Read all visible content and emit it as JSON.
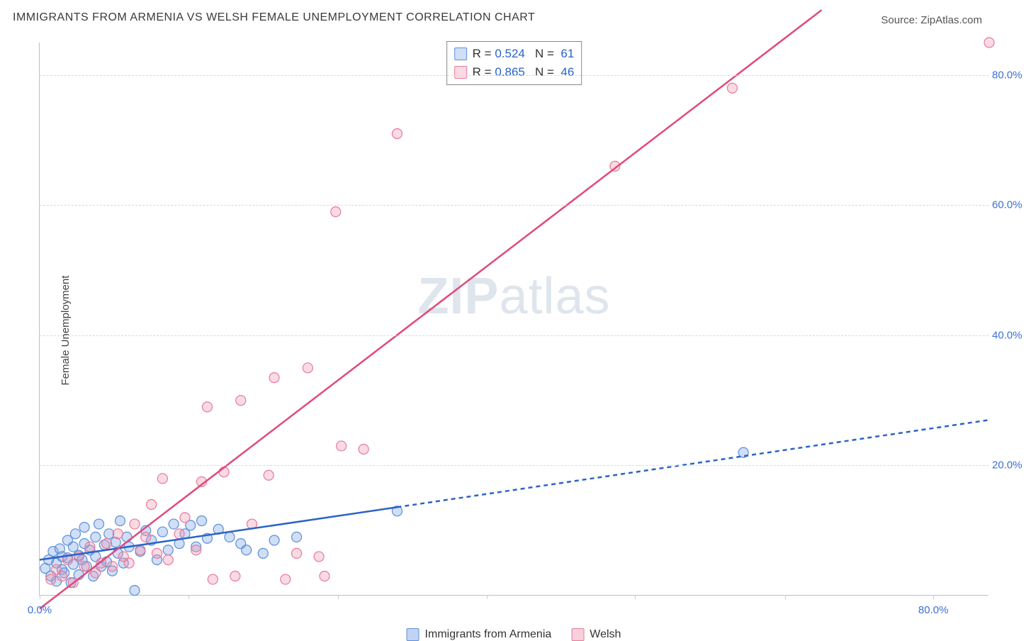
{
  "title": "IMMIGRANTS FROM ARMENIA VS WELSH FEMALE UNEMPLOYMENT CORRELATION CHART",
  "title_color": "#3a3a3a",
  "title_fontsize": 16,
  "source_label": "Source: ",
  "source_name": "ZipAtlas.com",
  "source_color": "#555555",
  "ylabel": "Female Unemployment",
  "watermark": "ZIPatlas",
  "background_color": "#ffffff",
  "grid_color": "#d8d8d8",
  "axis_color": "#bfbfbf",
  "xlim": [
    0,
    85
  ],
  "ylim": [
    0,
    85
  ],
  "yticks": [
    {
      "v": 20.0,
      "label": "20.0%"
    },
    {
      "v": 40.0,
      "label": "40.0%"
    },
    {
      "v": 60.0,
      "label": "60.0%"
    },
    {
      "v": 80.0,
      "label": "80.0%"
    }
  ],
  "xticks": [
    {
      "v": 0.0,
      "label": "0.0%"
    },
    {
      "v": 13.3,
      "label": ""
    },
    {
      "v": 26.7,
      "label": ""
    },
    {
      "v": 40.0,
      "label": ""
    },
    {
      "v": 53.3,
      "label": ""
    },
    {
      "v": 66.7,
      "label": ""
    },
    {
      "v": 80.0,
      "label": "80.0%"
    }
  ],
  "tick_label_color": "#3b6fd6",
  "tick_label_fontsize": 15,
  "series": [
    {
      "name": "Immigrants from Armenia",
      "fill": "rgba(120, 160, 230, 0.35)",
      "stroke": "#5b8fd9",
      "marker_radius": 7,
      "R": "0.524",
      "N": "61",
      "trend": {
        "x1": 0,
        "y1": 5.5,
        "x2": 85,
        "y2": 27,
        "color": "#2b63c8",
        "width": 2.5,
        "dash_after_x": 32,
        "dash_pattern": "6,5"
      },
      "points": [
        [
          0.5,
          4.2
        ],
        [
          0.8,
          5.5
        ],
        [
          1.0,
          3.0
        ],
        [
          1.2,
          6.8
        ],
        [
          1.5,
          2.2
        ],
        [
          1.5,
          5.0
        ],
        [
          1.8,
          7.2
        ],
        [
          2.0,
          4.0
        ],
        [
          2.0,
          6.0
        ],
        [
          2.2,
          3.5
        ],
        [
          2.5,
          8.5
        ],
        [
          2.5,
          5.8
        ],
        [
          2.8,
          2.0
        ],
        [
          3.0,
          7.5
        ],
        [
          3.0,
          4.8
        ],
        [
          3.2,
          9.5
        ],
        [
          3.5,
          6.2
        ],
        [
          3.5,
          3.2
        ],
        [
          3.8,
          5.5
        ],
        [
          4.0,
          8.0
        ],
        [
          4.0,
          10.5
        ],
        [
          4.2,
          4.5
        ],
        [
          4.5,
          7.0
        ],
        [
          4.8,
          3.0
        ],
        [
          5.0,
          9.0
        ],
        [
          5.0,
          6.0
        ],
        [
          5.3,
          11.0
        ],
        [
          5.5,
          4.5
        ],
        [
          5.8,
          7.8
        ],
        [
          6.0,
          5.2
        ],
        [
          6.2,
          9.5
        ],
        [
          6.5,
          3.8
        ],
        [
          6.8,
          8.2
        ],
        [
          7.0,
          6.5
        ],
        [
          7.2,
          11.5
        ],
        [
          7.5,
          5.0
        ],
        [
          7.8,
          9.0
        ],
        [
          8.0,
          7.5
        ],
        [
          8.5,
          0.8
        ],
        [
          9.0,
          6.8
        ],
        [
          9.5,
          10.0
        ],
        [
          10.0,
          8.5
        ],
        [
          10.5,
          5.5
        ],
        [
          11.0,
          9.8
        ],
        [
          11.5,
          7.0
        ],
        [
          12.0,
          11.0
        ],
        [
          12.5,
          8.0
        ],
        [
          13.0,
          9.5
        ],
        [
          13.5,
          10.8
        ],
        [
          14.0,
          7.5
        ],
        [
          14.5,
          11.5
        ],
        [
          15.0,
          8.8
        ],
        [
          16.0,
          10.2
        ],
        [
          17.0,
          9.0
        ],
        [
          18.0,
          8.0
        ],
        [
          18.5,
          7.0
        ],
        [
          20.0,
          6.5
        ],
        [
          21.0,
          8.5
        ],
        [
          23.0,
          9.0
        ],
        [
          32.0,
          13.0
        ],
        [
          63.0,
          22.0
        ]
      ]
    },
    {
      "name": "Welsh",
      "fill": "rgba(240, 150, 175, 0.35)",
      "stroke": "#e67a9a",
      "marker_radius": 7,
      "R": "0.865",
      "N": "46",
      "trend": {
        "x1": 0,
        "y1": -2,
        "x2": 70,
        "y2": 90,
        "color": "#e04a7a",
        "width": 2.5,
        "dash_after_x": 999,
        "dash_pattern": ""
      },
      "points": [
        [
          1.0,
          2.5
        ],
        [
          1.5,
          4.0
        ],
        [
          2.0,
          3.0
        ],
        [
          2.5,
          5.5
        ],
        [
          3.0,
          2.0
        ],
        [
          3.5,
          6.0
        ],
        [
          4.0,
          4.5
        ],
        [
          4.5,
          7.5
        ],
        [
          5.0,
          3.5
        ],
        [
          5.5,
          5.0
        ],
        [
          6.0,
          8.0
        ],
        [
          6.5,
          4.5
        ],
        [
          7.0,
          9.5
        ],
        [
          7.5,
          6.0
        ],
        [
          8.0,
          5.0
        ],
        [
          8.5,
          11.0
        ],
        [
          9.0,
          7.0
        ],
        [
          9.5,
          9.0
        ],
        [
          10.0,
          14.0
        ],
        [
          10.5,
          6.5
        ],
        [
          11.0,
          18.0
        ],
        [
          11.5,
          5.5
        ],
        [
          12.5,
          9.5
        ],
        [
          13.0,
          12.0
        ],
        [
          14.0,
          7.0
        ],
        [
          14.5,
          17.5
        ],
        [
          15.0,
          29.0
        ],
        [
          15.5,
          2.5
        ],
        [
          16.5,
          19.0
        ],
        [
          17.5,
          3.0
        ],
        [
          18.0,
          30.0
        ],
        [
          19.0,
          11.0
        ],
        [
          20.5,
          18.5
        ],
        [
          21.0,
          33.5
        ],
        [
          22.0,
          2.5
        ],
        [
          23.0,
          6.5
        ],
        [
          24.0,
          35.0
        ],
        [
          25.0,
          6.0
        ],
        [
          25.5,
          3.0
        ],
        [
          26.5,
          59.0
        ],
        [
          27.0,
          23.0
        ],
        [
          29.0,
          22.5
        ],
        [
          32.0,
          71.0
        ],
        [
          51.5,
          66.0
        ],
        [
          62.0,
          78.0
        ],
        [
          85.0,
          85.0
        ]
      ]
    }
  ],
  "legend_top": {
    "border_color": "#888888",
    "text_color": "#333333",
    "value_color": "#2b63c8",
    "R_label": "R =",
    "N_label": "N ="
  },
  "legend_bottom": {
    "items": [
      {
        "swatch_fill": "rgba(120, 160, 230, 0.45)",
        "swatch_stroke": "#5b8fd9",
        "label": "Immigrants from Armenia"
      },
      {
        "swatch_fill": "rgba(240, 150, 175, 0.45)",
        "swatch_stroke": "#e67a9a",
        "label": "Welsh"
      }
    ]
  }
}
